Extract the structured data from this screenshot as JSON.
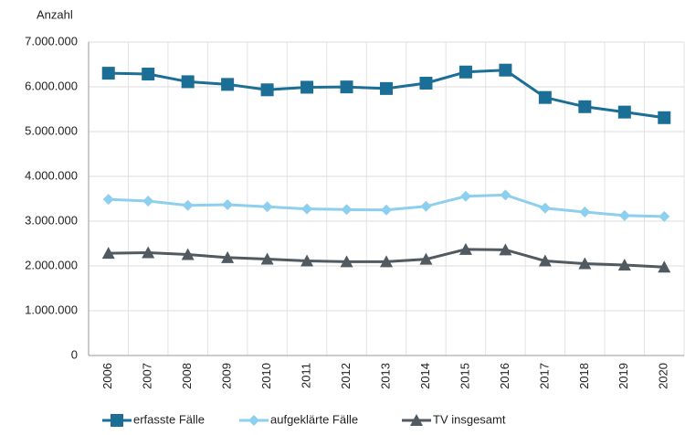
{
  "chart_data": {
    "type": "line",
    "y_label": "Anzahl",
    "categories": [
      "2006",
      "2007",
      "2008",
      "2009",
      "2010",
      "2011",
      "2012",
      "2013",
      "2014",
      "2015",
      "2016",
      "2017",
      "2018",
      "2019",
      "2020"
    ],
    "series": [
      {
        "name": "erfasste Fälle",
        "color": "#1b6e96",
        "marker": "square",
        "values": [
          6304000,
          6285000,
          6114000,
          6054000,
          5933000,
          5991000,
          5997000,
          5962000,
          6082000,
          6331000,
          6373000,
          5762000,
          5556000,
          5436000,
          5311000
        ]
      },
      {
        "name": "aufgeklärte Fälle",
        "color": "#8dcfee",
        "marker": "diamond",
        "values": [
          3486000,
          3449000,
          3352000,
          3368000,
          3322000,
          3272000,
          3259000,
          3250000,
          3331000,
          3556000,
          3585000,
          3291000,
          3203000,
          3124000,
          3104000
        ]
      },
      {
        "name": "TV insgesamt",
        "color": "#515a61",
        "marker": "triangle",
        "values": [
          2283000,
          2295000,
          2255000,
          2187000,
          2153000,
          2113000,
          2095000,
          2094000,
          2150000,
          2370000,
          2360000,
          2112000,
          2051000,
          2020000,
          1975000
        ]
      }
    ],
    "ylim": [
      0,
      7000000
    ],
    "yticks": [
      0,
      {
        "value": 1000000,
        "label": "1.000.000"
      },
      {
        "value": 2000000,
        "label": "2.000.000"
      },
      {
        "value": 3000000,
        "label": "3.000.000"
      },
      {
        "value": 4000000,
        "label": "4.000.000"
      },
      {
        "value": 5000000,
        "label": "5.000.000"
      },
      {
        "value": 6000000,
        "label": "6.000.000"
      },
      {
        "value": 7000000,
        "label": "7.000.000"
      }
    ],
    "grid": true,
    "legend": "bottom"
  }
}
